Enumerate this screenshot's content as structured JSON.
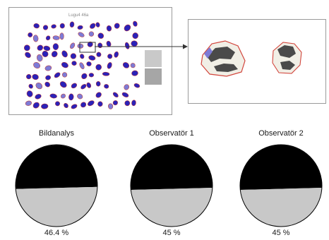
{
  "figure": {
    "scan_label": "Lugu4 46a",
    "colors": {
      "particle_fill": "#2b22b8",
      "particle_outline": "#c0332c",
      "particle_light": "#7d7bd6",
      "card_light": "#c9c9c9",
      "card_dark": "#a6a6a6",
      "connector": "#333333",
      "zoom_particle_dark": "#4a4a4a",
      "zoom_particle_light": "#f1efe6",
      "zoom_outline": "#d2453c"
    }
  },
  "chart_data": [
    {
      "type": "pie",
      "title": "Bildanalys",
      "value_label": "46.4 %",
      "values": [
        46.4,
        53.6
      ],
      "colors": [
        "#c8c8c8",
        "#000000"
      ]
    },
    {
      "type": "pie",
      "title": "Observatör 1",
      "value_label": "45 %",
      "values": [
        45,
        55
      ],
      "colors": [
        "#c8c8c8",
        "#000000"
      ]
    },
    {
      "type": "pie",
      "title": "Observatör 2",
      "value_label": "45 %",
      "values": [
        45,
        55
      ],
      "colors": [
        "#c8c8c8",
        "#000000"
      ]
    }
  ]
}
